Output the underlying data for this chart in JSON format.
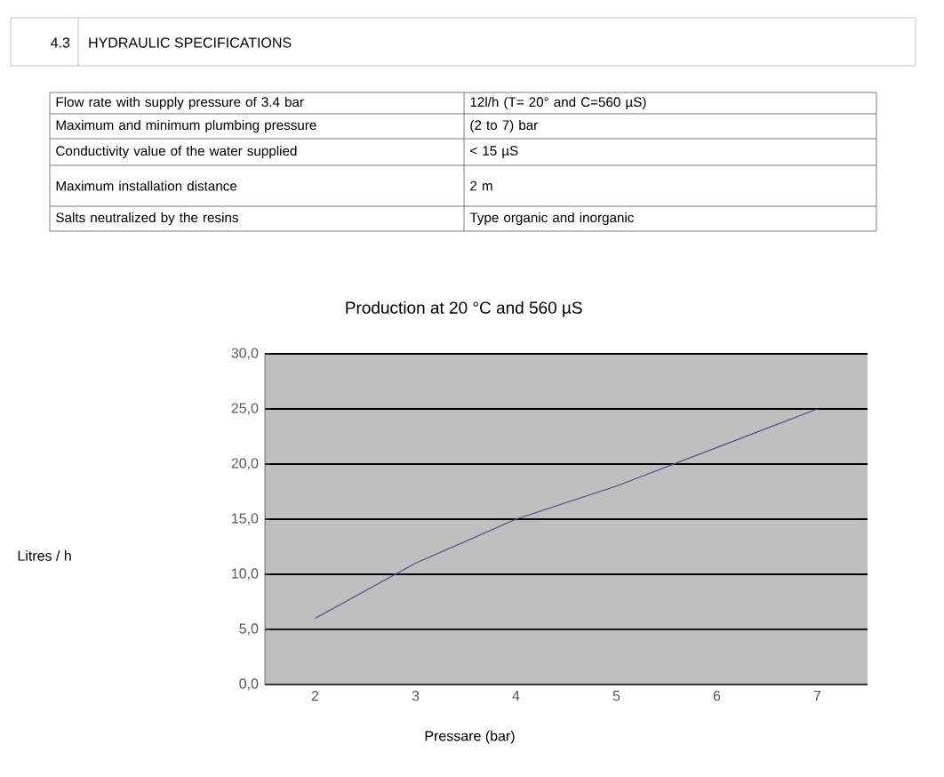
{
  "chart_data": [
    {
      "type": "other",
      "annotations": [
        "4.3",
        "HYDRAULIC SPECIFICATIONS",
        "Flow rate with supply pressure of 3.4 bar",
        "12l/h (T= 20° and C=560 µS)",
        "Maximum and minimum plumbing pressure",
        "(2 to 7) bar",
        "Conductivity value of the water supplied",
        "< 15 µS",
        "Maximum installation distance",
        "2 m",
        "Salts neutralized by the resins",
        "Type organic and inorganic"
      ]
    },
    {
      "type": "line",
      "title": "Production at  20 °C and 560 µS",
      "xlabel": "Pressare (bar)",
      "ylabel": "Litres / h",
      "categories": [
        "2",
        "3",
        "4",
        "5",
        "6",
        "7"
      ],
      "values": [
        6,
        11,
        15,
        18,
        21.5,
        25
      ],
      "color": "#4a4a8c",
      "ylim": [
        0,
        30
      ],
      "yticks": [
        {
          "value": 0,
          "label": "0,0"
        },
        {
          "value": 5,
          "label": "5,0"
        },
        {
          "value": 10,
          "label": "10,0"
        },
        {
          "value": 15,
          "label": "15,0"
        },
        {
          "value": 20,
          "label": "20,0"
        },
        {
          "value": 25,
          "label": "25,0"
        },
        {
          "value": 30,
          "label": "30,0"
        }
      ],
      "grid": "y",
      "marker": "none",
      "line_style": "solid"
    }
  ]
}
